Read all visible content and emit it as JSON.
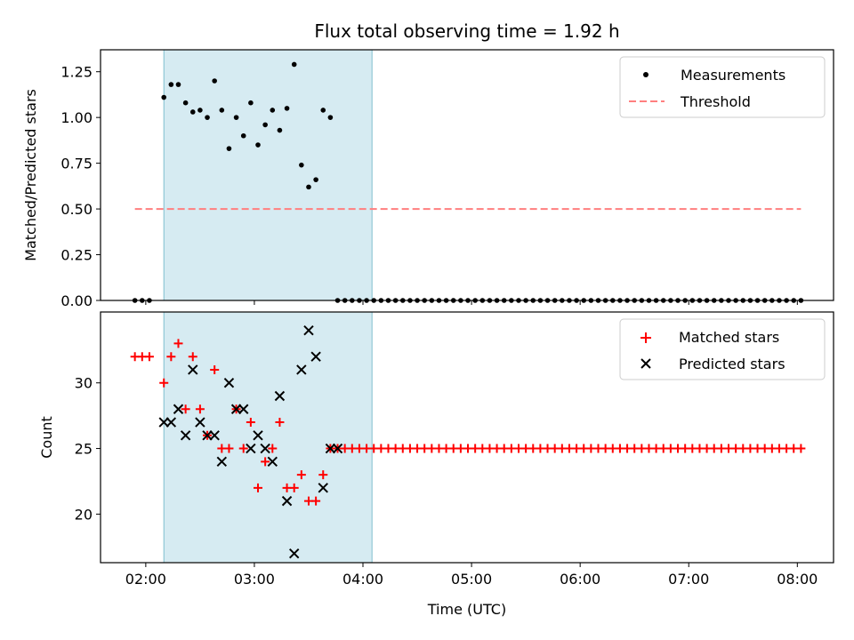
{
  "chart_data": [
    {
      "type": "scatter",
      "title": "Flux total observing time = 1.92 h",
      "ylabel": "Matched/Predicted stars",
      "xlim": [
        "01:35",
        "08:20"
      ],
      "ylim": [
        0,
        1.37
      ],
      "yticks": [
        "0.00",
        "0.25",
        "0.50",
        "0.75",
        "1.00",
        "1.25"
      ],
      "shaded_interval": [
        "02:10",
        "04:05"
      ],
      "shaded_color": "#add8e6",
      "legend_position": "top-right",
      "series": [
        {
          "name": "Measurements",
          "marker": "dot",
          "color": "#000000",
          "x": [
            "01:54",
            "01:58",
            "02:02",
            "02:10",
            "02:14",
            "02:18",
            "02:22",
            "02:26",
            "02:30",
            "02:34",
            "02:38",
            "02:42",
            "02:46",
            "02:50",
            "02:54",
            "02:58",
            "03:02",
            "03:06",
            "03:10",
            "03:14",
            "03:18",
            "03:22",
            "03:26",
            "03:30",
            "03:34",
            "03:38",
            "03:42",
            "03:46",
            "03:50",
            "03:54",
            "03:58",
            "04:02",
            "04:06",
            "04:10",
            "04:14",
            "04:18",
            "04:22",
            "04:26",
            "04:30",
            "04:34",
            "04:38",
            "04:42",
            "04:46",
            "04:50",
            "04:54",
            "04:58",
            "05:02",
            "05:06",
            "05:10",
            "05:14",
            "05:18",
            "05:22",
            "05:26",
            "05:30",
            "05:34",
            "05:38",
            "05:42",
            "05:46",
            "05:50",
            "05:54",
            "05:58",
            "06:02",
            "06:06",
            "06:10",
            "06:14",
            "06:18",
            "06:22",
            "06:26",
            "06:30",
            "06:34",
            "06:38",
            "06:42",
            "06:46",
            "06:50",
            "06:54",
            "06:58",
            "07:02",
            "07:06",
            "07:10",
            "07:14",
            "07:18",
            "07:22",
            "07:26",
            "07:30",
            "07:34",
            "07:38",
            "07:42",
            "07:46",
            "07:50",
            "07:54",
            "07:58",
            "08:02"
          ],
          "y": [
            0,
            0,
            0,
            1.11,
            1.18,
            1.18,
            1.08,
            1.03,
            1.04,
            1.0,
            1.2,
            1.04,
            0.83,
            1.0,
            0.9,
            1.08,
            0.85,
            0.96,
            1.04,
            0.93,
            1.05,
            1.29,
            0.74,
            0.62,
            0.66,
            1.04,
            1.0,
            0,
            0,
            0,
            0,
            0,
            0,
            0,
            0,
            0,
            0,
            0,
            0,
            0,
            0,
            0,
            0,
            0,
            0,
            0,
            0,
            0,
            0,
            0,
            0,
            0,
            0,
            0,
            0,
            0,
            0,
            0,
            0,
            0,
            0,
            0,
            0,
            0,
            0,
            0,
            0,
            0,
            0,
            0,
            0,
            0,
            0,
            0,
            0,
            0,
            0,
            0,
            0,
            0,
            0,
            0,
            0,
            0,
            0,
            0,
            0,
            0,
            0,
            0,
            0,
            0
          ]
        },
        {
          "name": "Threshold",
          "marker": "dashed-line",
          "color": "#ff7f7f",
          "x": [
            "01:54",
            "08:02"
          ],
          "y": [
            0.5,
            0.5
          ]
        }
      ]
    },
    {
      "type": "scatter",
      "xlabel": "Time (UTC)",
      "ylabel": "Count",
      "xlim": [
        "01:35",
        "08:20"
      ],
      "ylim": [
        16.3,
        35.4
      ],
      "yticks": [
        "20",
        "25",
        "30"
      ],
      "xticks": [
        "02:00",
        "03:00",
        "04:00",
        "05:00",
        "06:00",
        "07:00",
        "08:00"
      ],
      "shaded_interval": [
        "02:10",
        "04:05"
      ],
      "shaded_color": "#add8e6",
      "legend_position": "top-right",
      "series": [
        {
          "name": "Matched stars",
          "marker": "plus",
          "color": "#ff0000",
          "x": [
            "01:54",
            "01:58",
            "02:02",
            "02:10",
            "02:14",
            "02:18",
            "02:22",
            "02:26",
            "02:30",
            "02:34",
            "02:38",
            "02:42",
            "02:46",
            "02:50",
            "02:54",
            "02:58",
            "03:02",
            "03:06",
            "03:10",
            "03:14",
            "03:18",
            "03:22",
            "03:26",
            "03:30",
            "03:34",
            "03:38",
            "03:42",
            "03:46",
            "03:50",
            "03:54",
            "03:58",
            "04:02",
            "04:06",
            "04:10",
            "04:14",
            "04:18",
            "04:22",
            "04:26",
            "04:30",
            "04:34",
            "04:38",
            "04:42",
            "04:46",
            "04:50",
            "04:54",
            "04:58",
            "05:02",
            "05:06",
            "05:10",
            "05:14",
            "05:18",
            "05:22",
            "05:26",
            "05:30",
            "05:34",
            "05:38",
            "05:42",
            "05:46",
            "05:50",
            "05:54",
            "05:58",
            "06:02",
            "06:06",
            "06:10",
            "06:14",
            "06:18",
            "06:22",
            "06:26",
            "06:30",
            "06:34",
            "06:38",
            "06:42",
            "06:46",
            "06:50",
            "06:54",
            "06:58",
            "07:02",
            "07:06",
            "07:10",
            "07:14",
            "07:18",
            "07:22",
            "07:26",
            "07:30",
            "07:34",
            "07:38",
            "07:42",
            "07:46",
            "07:50",
            "07:54",
            "07:58",
            "08:02"
          ],
          "y": [
            32,
            32,
            32,
            30,
            32,
            33,
            28,
            32,
            28,
            26,
            31,
            25,
            25,
            28,
            25,
            27,
            22,
            24,
            25,
            27,
            22,
            22,
            23,
            21,
            21,
            23,
            25,
            25,
            25,
            25,
            25,
            25,
            25,
            25,
            25,
            25,
            25,
            25,
            25,
            25,
            25,
            25,
            25,
            25,
            25,
            25,
            25,
            25,
            25,
            25,
            25,
            25,
            25,
            25,
            25,
            25,
            25,
            25,
            25,
            25,
            25,
            25,
            25,
            25,
            25,
            25,
            25,
            25,
            25,
            25,
            25,
            25,
            25,
            25,
            25,
            25,
            25,
            25,
            25,
            25,
            25,
            25,
            25,
            25,
            25,
            25,
            25,
            25,
            25,
            25,
            25,
            25
          ]
        },
        {
          "name": "Predicted stars",
          "marker": "x",
          "color": "#000000",
          "x": [
            "02:10",
            "02:14",
            "02:18",
            "02:22",
            "02:26",
            "02:30",
            "02:34",
            "02:38",
            "02:42",
            "02:46",
            "02:50",
            "02:54",
            "02:58",
            "03:02",
            "03:06",
            "03:10",
            "03:14",
            "03:18",
            "03:22",
            "03:26",
            "03:30",
            "03:34",
            "03:38",
            "03:42",
            "03:46"
          ],
          "y": [
            27,
            27,
            28,
            26,
            31,
            27,
            26,
            26,
            24,
            30,
            28,
            28,
            25,
            26,
            25,
            24,
            29,
            21,
            17,
            31,
            34,
            32,
            22,
            25,
            25
          ]
        }
      ]
    }
  ]
}
